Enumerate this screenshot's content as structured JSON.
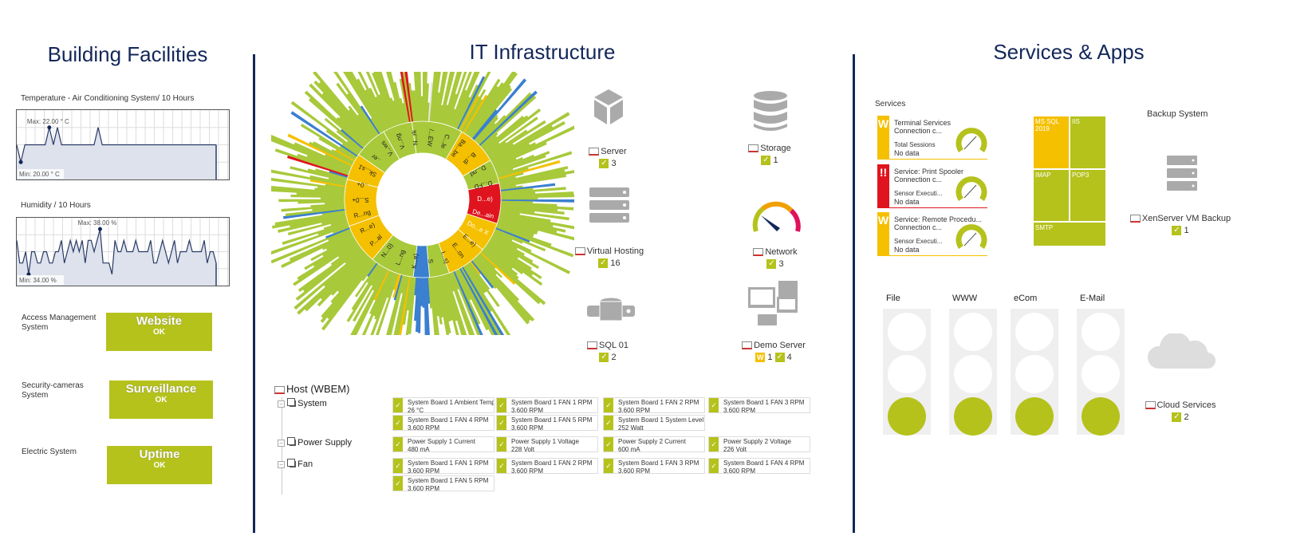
{
  "sections": {
    "building": "Building Facilities",
    "it": "IT Infrastructure",
    "services": "Services & Apps"
  },
  "temperature": {
    "title": "Temperature - Air Conditioning System/ 10 Hours",
    "max_label": "Max: 22.00 ° C",
    "min_label": "Min: 20.00 ° C",
    "range": [
      19,
      23
    ],
    "values": [
      21,
      20,
      21,
      21,
      21,
      21,
      21,
      21,
      22,
      21,
      22,
      21,
      21,
      21,
      21,
      21,
      21,
      21,
      21,
      21,
      22,
      21,
      21,
      21,
      21,
      21,
      21,
      21,
      21,
      21,
      21,
      21,
      21,
      21,
      21,
      21,
      21,
      21,
      21,
      21,
      21,
      21,
      21,
      21,
      21,
      21,
      21,
      21,
      21,
      21
    ]
  },
  "humidity": {
    "title": "Humidity / 10 Hours",
    "max_label": "Max: 38.00 %",
    "min_label": "Min: 34.00 %",
    "range": [
      33,
      39
    ],
    "values": [
      37,
      35,
      35,
      36,
      34,
      36,
      36,
      35,
      35,
      36,
      36,
      35,
      35,
      36,
      36,
      37,
      35,
      36,
      37,
      36,
      37,
      36,
      37,
      35,
      37,
      37,
      36,
      37,
      38,
      35,
      35,
      35,
      34,
      37,
      36,
      36,
      37,
      36,
      36,
      36,
      37,
      36,
      36,
      36,
      36,
      37,
      35,
      35,
      36,
      37,
      36,
      35,
      36,
      37,
      35,
      36,
      36,
      36,
      37,
      36,
      36,
      36,
      36,
      37,
      35,
      36,
      36,
      35
    ]
  },
  "status_boxes": [
    {
      "label": "Access Management System",
      "title": "Website",
      "status": "OK"
    },
    {
      "label": "Security-cameras System",
      "title": "Surveillance",
      "status": "OK"
    },
    {
      "label": "Electric System",
      "title": "Uptime",
      "status": "OK"
    }
  ],
  "sunburst": {
    "colors": {
      "ok": "#a8c93a",
      "warning": "#f5c000",
      "unusual": "#f08c20",
      "down": "#e0141e",
      "paused": "#3a7fd0",
      "unknown": "#e8e8e8"
    },
    "labels": [
      "D...e)",
      "De...ain",
      "Do...e X",
      "E...e)",
      "E...on",
      "I...s)",
      "S",
      "K...e)",
      "L...ng",
      "N...0)",
      "P...al",
      "R...e)",
      "R...ng",
      "S...0+",
      "..0+",
      "Sk...s1",
      "..er",
      "V...ws",
      "V...ng",
      "N...rk",
      "/...EW",
      "C...le",
      "Ba...be",
      "B...di",
      "D...nd",
      "D...FD"
    ]
  },
  "groups": [
    {
      "name": "Server",
      "icon": "cube-icon",
      "ok": "3"
    },
    {
      "name": "Storage",
      "icon": "database-icon",
      "ok": "1"
    },
    {
      "name": "Virtual Hosting",
      "icon": "server-rack-icon",
      "ok": "16"
    },
    {
      "name": "Network",
      "icon": "gauge-icon",
      "ok": "3"
    },
    {
      "name": "SQL 01",
      "icon": "sql-database-icon",
      "ok": "2"
    },
    {
      "name": "Demo Server",
      "icon": "workstation-icon",
      "warning": "1",
      "ok": "4"
    }
  ],
  "host": {
    "name": "Host (WBEM)",
    "groups": [
      {
        "name": "System",
        "sensors": [
          [
            "System Board 1 Ambient Temp",
            "26 °C"
          ],
          [
            "System Board 1 FAN 1 RPM",
            "3,600 RPM"
          ],
          [
            "System Board 1 FAN 2 RPM",
            "3,600 RPM"
          ],
          [
            "System Board 1 FAN 3 RPM",
            "3,600 RPM"
          ],
          [
            "System Board 1 FAN 4 RPM",
            "3,600 RPM"
          ],
          [
            "System Board 1 FAN 5 RPM",
            "3,600 RPM"
          ],
          [
            "System Board 1 System Level",
            "252 Watt"
          ]
        ]
      },
      {
        "name": "Power Supply",
        "sensors": [
          [
            "Power Supply 1 Current",
            "480 mA"
          ],
          [
            "Power Supply 1 Voltage",
            "228 Volt"
          ],
          [
            "Power Supply 2 Current",
            "600 mA"
          ],
          [
            "Power Supply 2 Voltage",
            "226 Volt"
          ]
        ]
      },
      {
        "name": "Fan",
        "sensors": [
          [
            "System Board 1 FAN 1 RPM",
            "3,600 RPM"
          ],
          [
            "System Board 1 FAN 2 RPM",
            "3,600 RPM"
          ],
          [
            "System Board 1 FAN 3 RPM",
            "3,600 RPM"
          ],
          [
            "System Board 1 FAN 4 RPM",
            "3,600 RPM"
          ],
          [
            "System Board 1 FAN 5 RPM",
            "3,600 RPM"
          ]
        ]
      }
    ]
  },
  "services": {
    "title": "Services",
    "items": [
      {
        "status": "W",
        "color": "#f5c000",
        "name": "Terminal Services",
        "line2": "Connection c...",
        "line3": "Total Sessions",
        "value": "No data"
      },
      {
        "status": "!!",
        "color": "#e0141e",
        "name": "Service: Print Spooler",
        "line2": "Connection c...",
        "line3": "Sensor Executi...",
        "value": "No data"
      },
      {
        "status": "W",
        "color": "#f5c000",
        "name": "Service: Remote Procedu...",
        "line2": "Connection c...",
        "line3": "Sensor Executi...",
        "value": "No data"
      }
    ]
  },
  "treemap": [
    {
      "name": "MS SQL 2019",
      "color": "#f5c000"
    },
    {
      "name": "IIS",
      "color": "#b5c21c"
    },
    {
      "name": "IMAP",
      "color": "#b5c21c"
    },
    {
      "name": "POP3",
      "color": "#b5c21c"
    },
    {
      "name": "SMTP",
      "color": "#b5c21c"
    }
  ],
  "backup": {
    "title": "Backup System",
    "device": "XenServer VM Backup",
    "ok": "1"
  },
  "traffic_lights": [
    {
      "name": "File",
      "state": "green"
    },
    {
      "name": "WWW",
      "state": "green"
    },
    {
      "name": "eCom",
      "state": "green"
    },
    {
      "name": "E-Mail",
      "state": "green"
    }
  ],
  "cloud": {
    "device": "Cloud Services",
    "ok": "2"
  },
  "colors": {
    "heading": "#13275a",
    "ok": "#b5c21c",
    "warning": "#f5c000",
    "down": "#e0141e"
  }
}
